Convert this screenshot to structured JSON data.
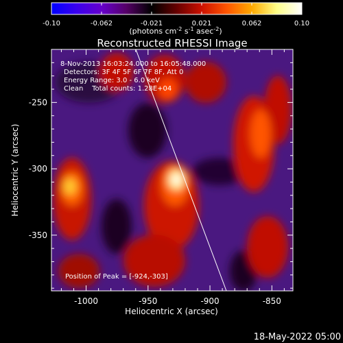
{
  "colorbar": {
    "tick_labels": [
      "-0.10",
      "-0.062",
      "-0.021",
      "0.021",
      "0.062",
      "0.10"
    ],
    "unit_label_parts": [
      "(photons cm",
      "-2",
      " s",
      "-1",
      " asec",
      "-2",
      ")"
    ],
    "gradient_colors": [
      "#0000ff",
      "#3a00ee",
      "#6600cc",
      "#550066",
      "#000000",
      "#660000",
      "#cc1100",
      "#ff5500",
      "#ffaa00",
      "#ffff88",
      "#ffffff"
    ]
  },
  "title": "Reconstructed RHESSI Image",
  "info": {
    "time_range": "8-Nov-2013 16:03:24.000 to 16:05:48.000",
    "detectors": "Detectors: 3F 4F 5F 6F 7F 8F, Att 0",
    "energy": "Energy Range: 3.0 - 6.0 keV",
    "clean": "Clean    Total counts: 1.28E+04"
  },
  "peak": "Position of Peak = [-924,-303]",
  "axes": {
    "xlabel": "Heliocentric X (arcsec)",
    "ylabel": "Heliocentric Y (arcsec)",
    "xticks": [
      -1000,
      -950,
      -900,
      -850
    ],
    "xtick_labels": [
      "-1000",
      "-950",
      "-900",
      "-850"
    ],
    "yticks": [
      -250,
      -300,
      -350
    ],
    "ytick_labels": [
      "-250",
      "-300",
      "-350"
    ],
    "xrange": [
      -1028,
      -833
    ],
    "yrange": [
      -392,
      -210
    ]
  },
  "footer": "18-May-2022 05:00"
}
